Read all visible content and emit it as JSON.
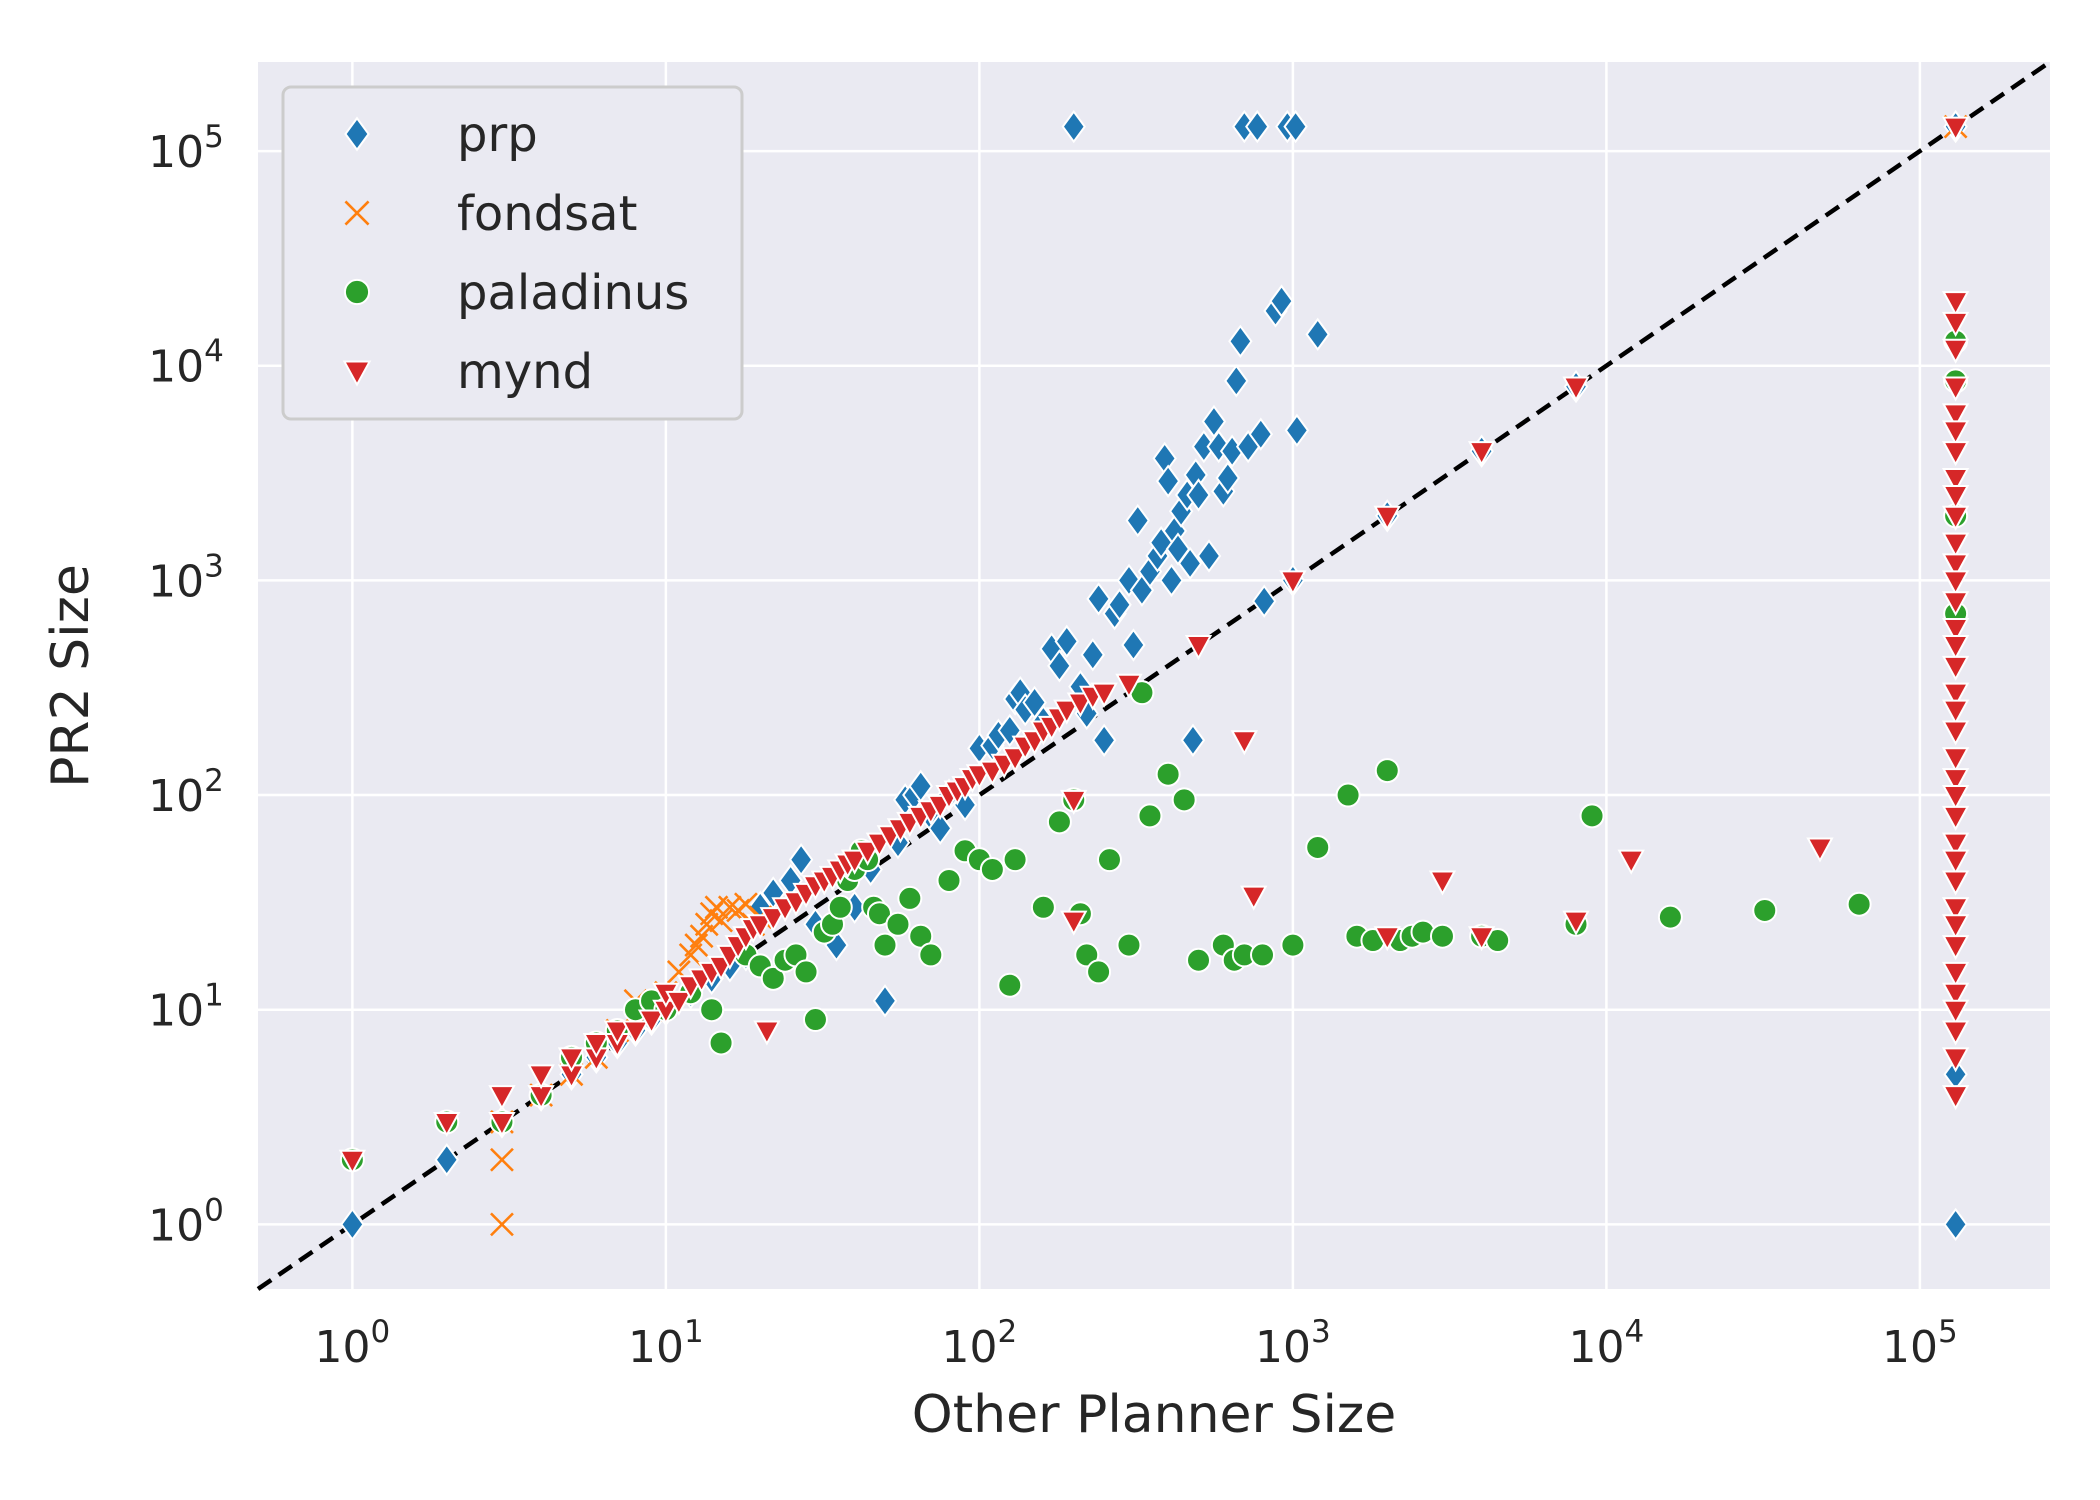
{
  "chart_data": {
    "type": "scatter",
    "xscale": "log",
    "yscale": "log",
    "xlabel": "Other Planner Size",
    "ylabel": "PR2 Size",
    "xlim": [
      0.5,
      260000
    ],
    "ylim": [
      0.5,
      260000
    ],
    "x_ticks": [
      {
        "value": 1,
        "base": "10",
        "exp": "0"
      },
      {
        "value": 10,
        "base": "10",
        "exp": "1"
      },
      {
        "value": 100,
        "base": "10",
        "exp": "2"
      },
      {
        "value": 1000,
        "base": "10",
        "exp": "3"
      },
      {
        "value": 10000,
        "base": "10",
        "exp": "4"
      },
      {
        "value": 100000,
        "base": "10",
        "exp": "5"
      }
    ],
    "y_ticks": [
      {
        "value": 1,
        "base": "10",
        "exp": "0"
      },
      {
        "value": 10,
        "base": "10",
        "exp": "1"
      },
      {
        "value": 100,
        "base": "10",
        "exp": "2"
      },
      {
        "value": 1000,
        "base": "10",
        "exp": "3"
      },
      {
        "value": 10000,
        "base": "10",
        "exp": "4"
      },
      {
        "value": 100000,
        "base": "10",
        "exp": "5"
      }
    ],
    "grid": true,
    "reference_line": "y = x (black dashed)",
    "legend_position": "top-left",
    "series": [
      {
        "name": "prp",
        "marker": "diamond",
        "color": "#1f77b4",
        "points": [
          [
            1,
            1
          ],
          [
            2,
            2
          ],
          [
            3,
            3
          ],
          [
            4,
            4
          ],
          [
            5,
            5
          ],
          [
            6,
            6
          ],
          [
            7,
            7
          ],
          [
            8,
            8
          ],
          [
            9,
            9
          ],
          [
            10,
            10
          ],
          [
            12,
            12
          ],
          [
            14,
            14
          ],
          [
            16,
            16
          ],
          [
            18,
            18
          ],
          [
            20,
            30
          ],
          [
            22,
            35
          ],
          [
            25,
            40
          ],
          [
            27,
            50
          ],
          [
            30,
            25
          ],
          [
            35,
            20
          ],
          [
            40,
            30
          ],
          [
            45,
            45
          ],
          [
            50,
            11
          ],
          [
            55,
            60
          ],
          [
            58,
            95
          ],
          [
            62,
            100
          ],
          [
            65,
            110
          ],
          [
            70,
            80
          ],
          [
            75,
            70
          ],
          [
            80,
            100
          ],
          [
            90,
            90
          ],
          [
            100,
            165
          ],
          [
            110,
            170
          ],
          [
            115,
            190
          ],
          [
            125,
            200
          ],
          [
            130,
            280
          ],
          [
            135,
            300
          ],
          [
            140,
            250
          ],
          [
            150,
            270
          ],
          [
            160,
            220
          ],
          [
            170,
            480
          ],
          [
            180,
            400
          ],
          [
            190,
            520
          ],
          [
            200,
            130000
          ],
          [
            210,
            320
          ],
          [
            220,
            240
          ],
          [
            230,
            450
          ],
          [
            240,
            820
          ],
          [
            250,
            180
          ],
          [
            270,
            700
          ],
          [
            280,
            770
          ],
          [
            300,
            1000
          ],
          [
            310,
            500
          ],
          [
            320,
            1900
          ],
          [
            330,
            900
          ],
          [
            350,
            1100
          ],
          [
            370,
            1300
          ],
          [
            380,
            1500
          ],
          [
            390,
            3700
          ],
          [
            400,
            2900
          ],
          [
            410,
            1000
          ],
          [
            420,
            1700
          ],
          [
            430,
            1400
          ],
          [
            440,
            2100
          ],
          [
            460,
            2500
          ],
          [
            470,
            1200
          ],
          [
            480,
            180
          ],
          [
            490,
            3100
          ],
          [
            500,
            2500
          ],
          [
            520,
            4200
          ],
          [
            540,
            1300
          ],
          [
            560,
            5500
          ],
          [
            580,
            4200
          ],
          [
            600,
            2600
          ],
          [
            620,
            3000
          ],
          [
            640,
            4000
          ],
          [
            660,
            8500
          ],
          [
            680,
            13000
          ],
          [
            700,
            130000
          ],
          [
            720,
            4200
          ],
          [
            770,
            130000
          ],
          [
            790,
            4800
          ],
          [
            810,
            800
          ],
          [
            880,
            18000
          ],
          [
            920,
            20000
          ],
          [
            960,
            130000
          ],
          [
            1000,
            1000
          ],
          [
            1020,
            130000
          ],
          [
            1030,
            5000
          ],
          [
            1200,
            14000
          ],
          [
            2000,
            2000
          ],
          [
            4000,
            4000
          ],
          [
            8000,
            8000
          ],
          [
            130000,
            130000
          ],
          [
            130000,
            5
          ],
          [
            130000,
            1
          ]
        ]
      },
      {
        "name": "fondsat",
        "marker": "x",
        "color": "#ff7f0e",
        "points": [
          [
            3,
            1
          ],
          [
            3,
            2
          ],
          [
            3,
            3
          ],
          [
            4,
            4
          ],
          [
            5,
            5
          ],
          [
            6,
            6
          ],
          [
            7,
            8
          ],
          [
            8,
            11
          ],
          [
            9,
            10
          ],
          [
            10,
            12
          ],
          [
            11,
            15
          ],
          [
            12,
            18
          ],
          [
            12.5,
            20
          ],
          [
            13,
            22
          ],
          [
            13.5,
            25
          ],
          [
            14,
            28
          ],
          [
            14.5,
            30
          ],
          [
            15,
            26
          ],
          [
            16,
            30
          ],
          [
            17,
            29
          ],
          [
            18,
            31
          ],
          [
            19,
            25
          ],
          [
            20,
            27
          ],
          [
            130000,
            130000
          ]
        ]
      },
      {
        "name": "paladinus",
        "marker": "circle",
        "color": "#2ca02c",
        "points": [
          [
            1,
            2
          ],
          [
            2,
            3
          ],
          [
            3,
            3
          ],
          [
            4,
            4
          ],
          [
            5,
            6
          ],
          [
            6,
            7
          ],
          [
            7,
            8
          ],
          [
            8,
            10
          ],
          [
            9,
            11
          ],
          [
            10,
            10
          ],
          [
            12,
            12
          ],
          [
            14,
            10
          ],
          [
            15,
            7
          ],
          [
            18,
            18
          ],
          [
            20,
            16
          ],
          [
            22,
            14
          ],
          [
            24,
            17
          ],
          [
            26,
            18
          ],
          [
            28,
            15
          ],
          [
            30,
            9
          ],
          [
            32,
            23
          ],
          [
            34,
            25
          ],
          [
            36,
            30
          ],
          [
            38,
            40
          ],
          [
            40,
            45
          ],
          [
            42,
            55
          ],
          [
            44,
            50
          ],
          [
            46,
            30
          ],
          [
            48,
            28
          ],
          [
            50,
            20
          ],
          [
            55,
            25
          ],
          [
            60,
            33
          ],
          [
            65,
            22
          ],
          [
            70,
            18
          ],
          [
            80,
            40
          ],
          [
            90,
            55
          ],
          [
            100,
            50
          ],
          [
            110,
            45
          ],
          [
            125,
            13
          ],
          [
            130,
            50
          ],
          [
            160,
            30
          ],
          [
            180,
            75
          ],
          [
            200,
            95
          ],
          [
            210,
            28
          ],
          [
            220,
            18
          ],
          [
            240,
            15
          ],
          [
            260,
            50
          ],
          [
            300,
            20
          ],
          [
            330,
            300
          ],
          [
            350,
            80
          ],
          [
            400,
            125
          ],
          [
            450,
            95
          ],
          [
            500,
            17
          ],
          [
            600,
            20
          ],
          [
            650,
            17
          ],
          [
            700,
            18
          ],
          [
            800,
            18
          ],
          [
            1000,
            20
          ],
          [
            1200,
            57
          ],
          [
            1500,
            100
          ],
          [
            1600,
            22
          ],
          [
            1800,
            21
          ],
          [
            2000,
            130
          ],
          [
            2200,
            21
          ],
          [
            2400,
            22
          ],
          [
            2600,
            23
          ],
          [
            3000,
            22
          ],
          [
            4000,
            22
          ],
          [
            4500,
            21
          ],
          [
            8000,
            25
          ],
          [
            9000,
            80
          ],
          [
            16000,
            27
          ],
          [
            32000,
            29
          ],
          [
            64000,
            31
          ],
          [
            130000,
            13000
          ],
          [
            130000,
            8500
          ],
          [
            130000,
            2000
          ],
          [
            130000,
            700
          ]
        ]
      },
      {
        "name": "mynd",
        "marker": "triangle-down",
        "color": "#d62728",
        "points": [
          [
            1,
            2
          ],
          [
            2,
            3
          ],
          [
            3,
            3
          ],
          [
            3,
            4
          ],
          [
            4,
            4
          ],
          [
            4,
            5
          ],
          [
            5,
            5
          ],
          [
            5,
            6
          ],
          [
            6,
            6
          ],
          [
            6,
            7
          ],
          [
            7,
            7
          ],
          [
            7,
            8
          ],
          [
            8,
            8
          ],
          [
            9,
            9
          ],
          [
            10,
            10
          ],
          [
            10,
            12
          ],
          [
            11,
            11
          ],
          [
            12,
            13
          ],
          [
            13,
            14
          ],
          [
            14,
            15
          ],
          [
            15,
            16
          ],
          [
            16,
            18
          ],
          [
            17,
            20
          ],
          [
            18,
            22
          ],
          [
            19,
            24
          ],
          [
            20,
            25
          ],
          [
            21,
            8
          ],
          [
            22,
            27
          ],
          [
            24,
            30
          ],
          [
            26,
            32
          ],
          [
            28,
            35
          ],
          [
            30,
            38
          ],
          [
            32,
            40
          ],
          [
            34,
            42
          ],
          [
            36,
            45
          ],
          [
            38,
            48
          ],
          [
            40,
            50
          ],
          [
            44,
            55
          ],
          [
            48,
            60
          ],
          [
            52,
            65
          ],
          [
            56,
            70
          ],
          [
            60,
            75
          ],
          [
            65,
            80
          ],
          [
            70,
            85
          ],
          [
            75,
            90
          ],
          [
            80,
            100
          ],
          [
            85,
            105
          ],
          [
            90,
            110
          ],
          [
            95,
            120
          ],
          [
            100,
            125
          ],
          [
            110,
            130
          ],
          [
            120,
            140
          ],
          [
            130,
            150
          ],
          [
            140,
            170
          ],
          [
            150,
            180
          ],
          [
            160,
            200
          ],
          [
            170,
            210
          ],
          [
            180,
            230
          ],
          [
            190,
            250
          ],
          [
            200,
            26
          ],
          [
            200,
            95
          ],
          [
            210,
            270
          ],
          [
            230,
            290
          ],
          [
            250,
            300
          ],
          [
            300,
            330
          ],
          [
            500,
            500
          ],
          [
            700,
            180
          ],
          [
            750,
            34
          ],
          [
            1000,
            1000
          ],
          [
            2000,
            2000
          ],
          [
            2000,
            22
          ],
          [
            3000,
            40
          ],
          [
            4000,
            4000
          ],
          [
            4000,
            22
          ],
          [
            8000,
            8000
          ],
          [
            8000,
            26
          ],
          [
            12000,
            50
          ],
          [
            48000,
            57
          ],
          [
            130000,
            130000
          ],
          [
            130000,
            20000
          ],
          [
            130000,
            16000
          ],
          [
            130000,
            12000
          ],
          [
            130000,
            8000
          ],
          [
            130000,
            6000
          ],
          [
            130000,
            5000
          ],
          [
            130000,
            4000
          ],
          [
            130000,
            3000
          ],
          [
            130000,
            2500
          ],
          [
            130000,
            2000
          ],
          [
            130000,
            1500
          ],
          [
            130000,
            1200
          ],
          [
            130000,
            1000
          ],
          [
            130000,
            800
          ],
          [
            130000,
            600
          ],
          [
            130000,
            500
          ],
          [
            130000,
            400
          ],
          [
            130000,
            300
          ],
          [
            130000,
            250
          ],
          [
            130000,
            200
          ],
          [
            130000,
            150
          ],
          [
            130000,
            120
          ],
          [
            130000,
            100
          ],
          [
            130000,
            80
          ],
          [
            130000,
            60
          ],
          [
            130000,
            50
          ],
          [
            130000,
            40
          ],
          [
            130000,
            30
          ],
          [
            130000,
            25
          ],
          [
            130000,
            20
          ],
          [
            130000,
            15
          ],
          [
            130000,
            12
          ],
          [
            130000,
            10
          ],
          [
            130000,
            8
          ],
          [
            130000,
            6
          ],
          [
            130000,
            4
          ]
        ]
      }
    ]
  }
}
